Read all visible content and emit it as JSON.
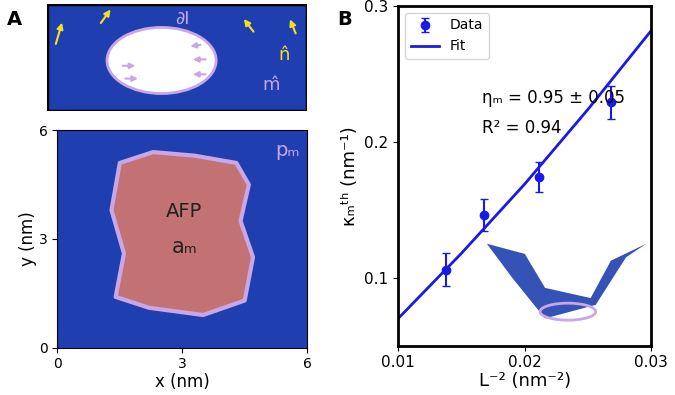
{
  "chart_data": [
    {
      "type": "image",
      "panel": "A",
      "annotations": [
        "∂I",
        "n̂",
        "m̂"
      ]
    },
    {
      "type": "region",
      "xlabel": "x (nm)",
      "ylabel": "y (nm)",
      "xlim": [
        0,
        6
      ],
      "ylim": [
        0,
        6
      ],
      "xticks": [
        0,
        3,
        6
      ],
      "yticks": [
        0,
        3,
        6
      ],
      "region": {
        "x": [
          1.5,
          2.3,
          3.3,
          4.3,
          4.6,
          4.4,
          4.7,
          4.5,
          3.5,
          2.2,
          1.4,
          1.6,
          1.3
        ],
        "y": [
          5.1,
          5.4,
          5.3,
          5.1,
          4.5,
          3.5,
          2.5,
          1.3,
          0.9,
          1.1,
          1.4,
          2.6,
          3.8
        ]
      },
      "annotations": [
        "AFP",
        "aₘ",
        "pₘ"
      ]
    },
    {
      "type": "scatter",
      "panel": "B",
      "xlabel": "L⁻² (nm⁻²)",
      "ylabel": "κₘᵗʰ (nm⁻¹)",
      "xlim": [
        0.01,
        0.03
      ],
      "ylim": [
        0.05,
        0.3
      ],
      "xticks": [
        0.01,
        0.02,
        0.03
      ],
      "yticks": [
        0.1,
        0.2,
        0.3
      ],
      "legend": "upper left",
      "series": [
        {
          "name": "Data",
          "type": "scatter",
          "color": "#1a1ae6",
          "marker": "o",
          "x": [
            0.0138,
            0.0168,
            0.0211,
            0.0268
          ],
          "values": [
            0.106,
            0.146,
            0.174,
            0.229
          ],
          "errors": [
            0.012,
            0.012,
            0.011,
            0.012
          ]
        },
        {
          "name": "Fit",
          "type": "line",
          "color": "#1a1ae6",
          "line_style": "solid",
          "x": [
            0.01,
            0.015,
            0.02,
            0.025,
            0.03
          ],
          "values": [
            0.07,
            0.118,
            0.169,
            0.224,
            0.282
          ]
        }
      ],
      "annotations": [
        "ηₘ = 0.95 ± 0.05",
        "R² = 0.94"
      ]
    }
  ]
}
